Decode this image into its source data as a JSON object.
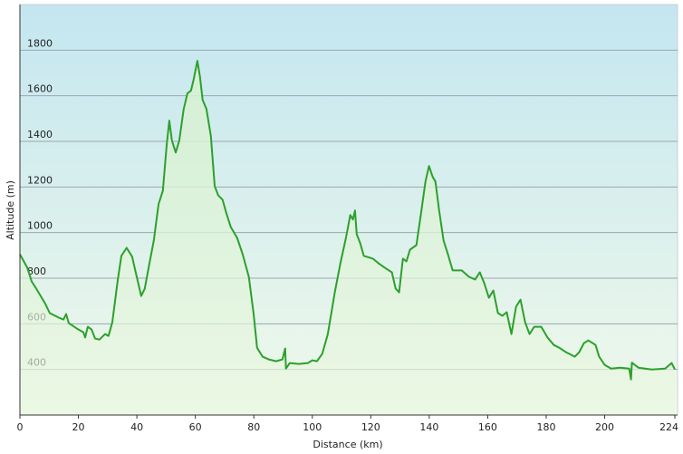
{
  "chart_data": {
    "type": "area",
    "x_label": "Distance  (km)",
    "y_label": "Altitude (m)",
    "x": [
      0,
      2.5,
      4,
      5.6,
      8.7,
      10.2,
      13.3,
      14.9,
      15.8,
      16.7,
      19.5,
      21.7,
      22.3,
      23.2,
      24.5,
      25.7,
      27.2,
      29.1,
      30.3,
      31.6,
      33.4,
      34.7,
      36.5,
      38.4,
      39.6,
      41.5,
      42.7,
      44.3,
      45.8,
      47.4,
      48.9,
      50.2,
      51.1,
      52,
      53.3,
      54.5,
      56,
      57.3,
      58.5,
      59.4,
      60.7,
      61.6,
      62.5,
      63.8,
      65.3,
      66.6,
      67.8,
      69.3,
      70.6,
      72.1,
      74.3,
      76.2,
      78.3,
      79.9,
      81.1,
      83,
      85.1,
      87.6,
      89.8,
      90.7,
      91,
      92.3,
      95.4,
      98.5,
      100,
      101.6,
      103.4,
      105.3,
      107.7,
      109.6,
      111.5,
      113,
      113.9,
      114.6,
      115.2,
      116.4,
      117.6,
      120.7,
      122.6,
      124.8,
      127.2,
      128.5,
      129.7,
      131,
      132.2,
      133.4,
      135.6,
      137.2,
      138.7,
      139.9,
      141.2,
      142.1,
      143.3,
      144.9,
      146.4,
      148,
      151.1,
      153.6,
      155.7,
      157.3,
      158.8,
      160.4,
      161.9,
      163.5,
      165,
      166.5,
      168.1,
      169.7,
      171.2,
      172.8,
      174.3,
      175.9,
      178.3,
      180.5,
      182.6,
      184.5,
      186.7,
      189.8,
      191.3,
      192.9,
      194.4,
      196.9,
      198.1,
      200,
      202.2,
      205.3,
      208.4,
      209,
      209.3,
      211.5,
      216.1,
      220.7,
      222.9,
      224
    ],
    "values": [
      905,
      846,
      786,
      754,
      687,
      647,
      627,
      619,
      643,
      603,
      579,
      563,
      540,
      587,
      575,
      535,
      531,
      555,
      547,
      607,
      786,
      898,
      933,
      894,
      826,
      722,
      754,
      866,
      965,
      1124,
      1184,
      1383,
      1491,
      1403,
      1351,
      1403,
      1542,
      1610,
      1622,
      1670,
      1753,
      1682,
      1582,
      1542,
      1423,
      1204,
      1164,
      1144,
      1085,
      1025,
      977,
      905,
      806,
      647,
      495,
      456,
      444,
      436,
      444,
      492,
      404,
      428,
      424,
      428,
      440,
      436,
      468,
      555,
      738,
      866,
      977,
      1077,
      1057,
      1097,
      993,
      953,
      898,
      886,
      866,
      846,
      826,
      754,
      738,
      886,
      874,
      925,
      945,
      1085,
      1224,
      1292,
      1244,
      1224,
      1105,
      965,
      905,
      834,
      834,
      806,
      794,
      826,
      778,
      714,
      746,
      647,
      635,
      651,
      555,
      675,
      706,
      607,
      555,
      587,
      587,
      539,
      507,
      495,
      476,
      456,
      476,
      515,
      527,
      507,
      456,
      420,
      404,
      408,
      404,
      356,
      430,
      408,
      400,
      404,
      428,
      400
    ],
    "color": "#2ca02c",
    "xlim": [
      0,
      224
    ],
    "xticks": [
      0,
      20,
      40,
      60,
      80,
      100,
      120,
      140,
      160,
      180,
      200,
      224
    ],
    "ylim": [
      200,
      2000
    ],
    "yticks": [
      400,
      600,
      800,
      1000,
      1200,
      1400,
      1600,
      1800
    ],
    "grid": true
  }
}
